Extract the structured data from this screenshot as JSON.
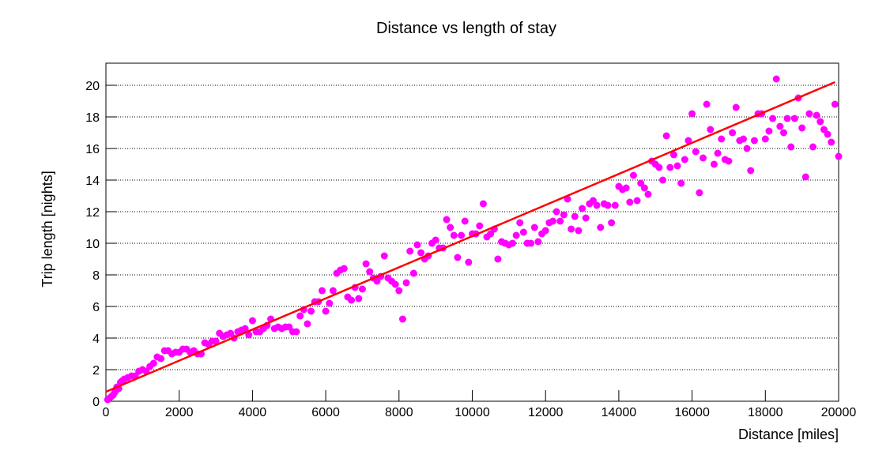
{
  "chart_data": {
    "type": "scatter",
    "title": "Distance vs length of stay",
    "x_label": "Distance [miles]",
    "y_label": "Trip length [nights]",
    "xlim": [
      0,
      20000
    ],
    "ylim": [
      0,
      21.4
    ],
    "xticks": [
      0,
      2000,
      4000,
      6000,
      8000,
      10000,
      12000,
      14000,
      16000,
      18000,
      20000
    ],
    "yticks": [
      0,
      2,
      4,
      6,
      8,
      10,
      12,
      14,
      16,
      18,
      20
    ],
    "grid": "y",
    "series": [
      {
        "mode": "markers",
        "color": "#ff00ff",
        "x": [
          50,
          100,
          150,
          200,
          250,
          300,
          350,
          400,
          450,
          500,
          600,
          700,
          800,
          900,
          1000,
          1100,
          1200,
          1300,
          1400,
          1500,
          1600,
          1700,
          1800,
          1900,
          2000,
          2100,
          2200,
          2300,
          2400,
          2500,
          2600,
          2700,
          2800,
          2900,
          3000,
          3100,
          3200,
          3300,
          3400,
          3500,
          3600,
          3700,
          3800,
          3900,
          4000,
          4100,
          4200,
          4300,
          4400,
          4500,
          4600,
          4700,
          4800,
          4900,
          5000,
          5100,
          5200,
          5300,
          5400,
          5500,
          5600,
          5700,
          5800,
          5900,
          6000,
          6100,
          6200,
          6300,
          6400,
          6500,
          6600,
          6700,
          6800,
          6900,
          7000,
          7100,
          7200,
          7300,
          7400,
          7500,
          7600,
          7700,
          7800,
          7900,
          8000,
          8100,
          8200,
          8300,
          8400,
          8500,
          8600,
          8700,
          8800,
          8900,
          9000,
          9100,
          9200,
          9300,
          9400,
          9500,
          9600,
          9700,
          9800,
          9900,
          10000,
          10100,
          10200,
          10300,
          10400,
          10500,
          10600,
          10700,
          10800,
          10900,
          11000,
          11100,
          11200,
          11300,
          11400,
          11500,
          11600,
          11700,
          11800,
          11900,
          12000,
          12100,
          12200,
          12300,
          12400,
          12500,
          12600,
          12700,
          12800,
          12900,
          13000,
          13100,
          13200,
          13300,
          13400,
          13500,
          13600,
          13700,
          13800,
          13900,
          14000,
          14100,
          14200,
          14300,
          14400,
          14500,
          14600,
          14700,
          14800,
          14900,
          15000,
          15100,
          15200,
          15300,
          15400,
          15500,
          15600,
          15700,
          15800,
          15900,
          16000,
          16100,
          16200,
          16300,
          16400,
          16500,
          16600,
          16700,
          16800,
          16900,
          17000,
          17100,
          17200,
          17300,
          17400,
          17500,
          17600,
          17700,
          17800,
          17900,
          18000,
          18100,
          18200,
          18300,
          18400,
          18500,
          18600,
          18700,
          18800,
          18900,
          19000,
          19100,
          19200,
          19300,
          19400,
          19500,
          19600,
          19700,
          19800,
          19900,
          20000
        ],
        "values": [
          0.1,
          0.2,
          0.3,
          0.4,
          0.6,
          0.9,
          0.8,
          1.2,
          1.3,
          1.4,
          1.5,
          1.6,
          1.6,
          1.9,
          2.0,
          1.9,
          2.2,
          2.4,
          2.8,
          2.7,
          3.2,
          3.2,
          3.0,
          3.1,
          3.1,
          3.3,
          3.3,
          3.1,
          3.2,
          3.0,
          3.0,
          3.7,
          3.6,
          3.8,
          3.8,
          4.3,
          4.1,
          4.2,
          4.3,
          4.0,
          4.4,
          4.5,
          4.6,
          4.2,
          5.1,
          4.4,
          4.4,
          4.6,
          4.8,
          5.2,
          4.6,
          4.7,
          4.6,
          4.7,
          4.7,
          4.4,
          4.4,
          5.4,
          5.8,
          4.9,
          5.7,
          6.3,
          6.3,
          7.0,
          5.7,
          6.2,
          7.0,
          8.1,
          8.3,
          8.4,
          6.6,
          6.4,
          7.2,
          6.5,
          7.1,
          8.7,
          8.2,
          7.8,
          7.6,
          7.9,
          9.2,
          7.8,
          7.6,
          7.4,
          7.0,
          5.2,
          7.5,
          9.5,
          8.1,
          9.9,
          9.4,
          9.0,
          9.2,
          10.0,
          10.2,
          9.7,
          9.7,
          11.5,
          11.0,
          10.5,
          9.1,
          10.5,
          11.4,
          8.8,
          10.6,
          10.6,
          11.1,
          12.5,
          10.4,
          10.6,
          10.9,
          9.0,
          10.1,
          10.0,
          9.9,
          10.0,
          10.5,
          11.3,
          10.7,
          10.0,
          10.0,
          11.0,
          10.1,
          10.6,
          10.8,
          11.3,
          11.4,
          12.0,
          11.4,
          11.8,
          12.8,
          10.9,
          11.7,
          10.8,
          12.2,
          11.6,
          12.5,
          12.7,
          12.4,
          11.0,
          12.5,
          12.4,
          11.3,
          12.4,
          13.6,
          13.4,
          13.5,
          12.6,
          14.3,
          12.7,
          13.8,
          13.5,
          13.1,
          15.2,
          15.0,
          14.8,
          14.0,
          16.8,
          14.8,
          15.6,
          14.9,
          13.8,
          15.3,
          16.5,
          18.2,
          15.8,
          13.2,
          15.4,
          18.8,
          17.2,
          15.0,
          15.7,
          16.6,
          15.3,
          15.2,
          17.0,
          18.6,
          16.5,
          16.6,
          16.0,
          14.6,
          16.5,
          18.2,
          18.2,
          16.6,
          17.1,
          17.9,
          20.4,
          17.4,
          17.0,
          17.9,
          16.1,
          17.9,
          19.2,
          17.3,
          14.2,
          18.2,
          16.1,
          18.1,
          17.7,
          17.2,
          16.9,
          16.4,
          18.8,
          15.5
        ]
      },
      {
        "mode": "line",
        "color": "#ff0000",
        "x": [
          0,
          19900
        ],
        "values": [
          0.6,
          20.2
        ]
      }
    ]
  }
}
